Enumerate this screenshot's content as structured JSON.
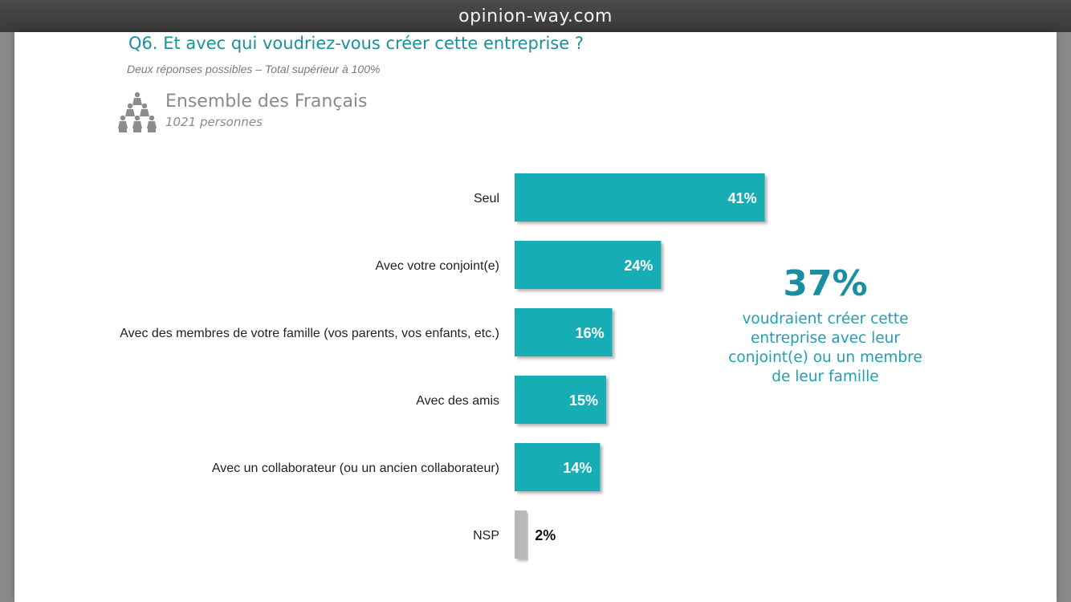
{
  "browser": {
    "url": "opinion-way.com"
  },
  "slide": {
    "title": "Q6. Et avec qui voudriez-vous créer cette entreprise ?",
    "subtitle": "Deux réponses possibles – Total supérieur à 100%",
    "sample": {
      "name": "Ensemble des Français",
      "count": "1021 personnes",
      "icon": "people-icon"
    }
  },
  "chart_data": {
    "type": "bar",
    "orientation": "horizontal",
    "categories": [
      "Seul",
      "Avec votre conjoint(e)",
      "Avec des membres de votre famille (vos parents, vos enfants, etc.)",
      "Avec des amis",
      "Avec un collaborateur (ou un ancien collaborateur)",
      "NSP"
    ],
    "values": [
      41,
      24,
      16,
      15,
      14,
      2
    ],
    "value_labels": [
      "41%",
      "24%",
      "16%",
      "15%",
      "14%",
      "2%"
    ],
    "colors": [
      "#14adb5",
      "#14adb5",
      "#14adb5",
      "#14adb5",
      "#14adb5",
      "#b8b8b8"
    ],
    "xlim": [
      0,
      100
    ],
    "grid": false,
    "legend": "none"
  },
  "callout": {
    "value": "37%",
    "text_lines": [
      "voudraient créer cette",
      "entreprise avec leur",
      "conjoint(e) ou un membre",
      "de leur famille"
    ]
  }
}
